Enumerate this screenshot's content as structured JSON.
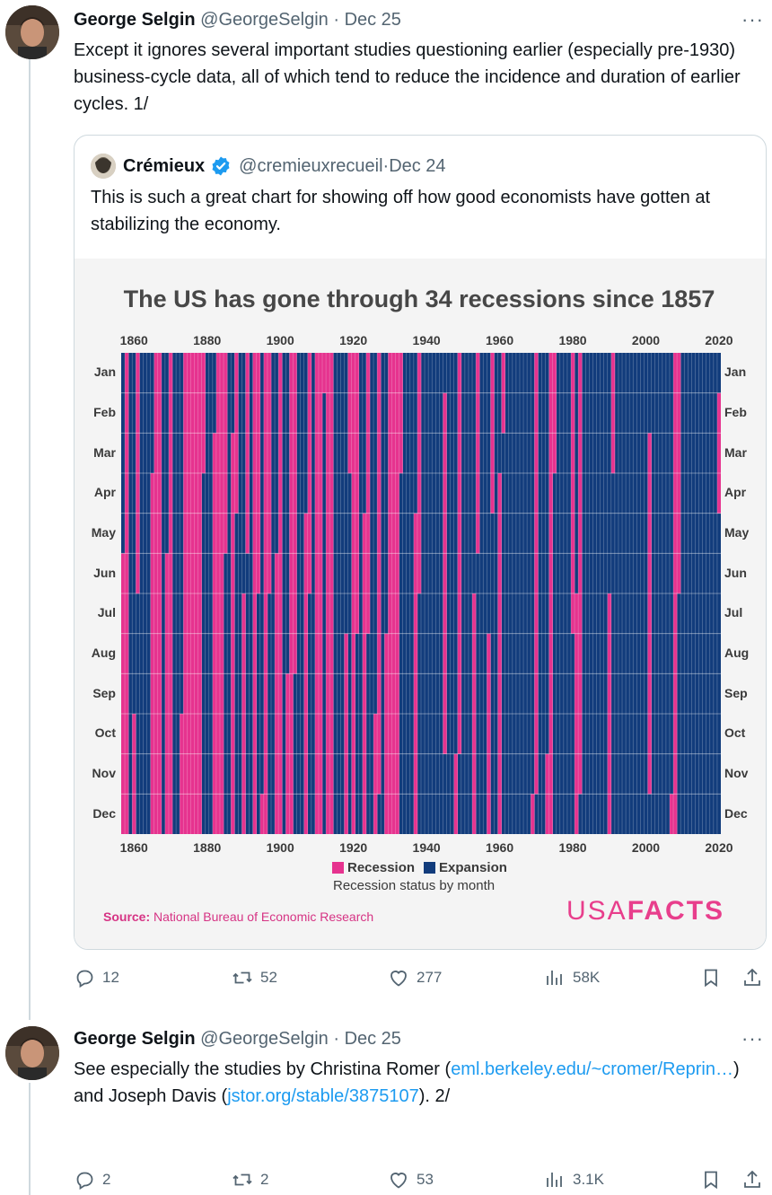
{
  "tweets": [
    {
      "author": "George Selgin",
      "handle": "@GeorgeSelgin",
      "separator": "·",
      "date": "Dec 25",
      "text": "Except it ignores several important studies questioning earlier (especially pre-1930) business-cycle data, all of which tend to reduce the incidence and duration of earlier cycles. 1/",
      "quote": {
        "author": "Crémieux",
        "handle": "@cremieuxrecueil",
        "separator": "·",
        "date": "Dec 24",
        "text": "This is such a great chart for showing off how good economists have gotten at stabilizing the economy."
      },
      "stats": {
        "replies": "12",
        "retweets": "52",
        "likes": "277",
        "views": "58K"
      }
    },
    {
      "author": "George Selgin",
      "handle": "@GeorgeSelgin",
      "separator": "·",
      "date": "Dec 25",
      "text_before": "See especially the studies by Christina Romer (",
      "link1": "eml.berkeley.edu/~cromer/Reprin…",
      "text_middle": ") and Joseph Davis (",
      "link2": "jstor.org/stable/3875107",
      "text_after": "). 2/",
      "stats": {
        "replies": "2",
        "retweets": "2",
        "likes": "53",
        "views": "3.1K"
      }
    }
  ],
  "chart_data": {
    "type": "heatmap",
    "title": "The US has gone through 34 recessions since 1857",
    "x_ticks": [
      "1860",
      "1880",
      "1900",
      "1920",
      "1940",
      "1960",
      "1980",
      "2000",
      "2020"
    ],
    "months": [
      "Jan",
      "Feb",
      "Mar",
      "Apr",
      "May",
      "Jun",
      "Jul",
      "Aug",
      "Sep",
      "Oct",
      "Nov",
      "Dec"
    ],
    "xlim": [
      1857,
      2020
    ],
    "legend": [
      {
        "label": "Recession",
        "color": "#e6338f"
      },
      {
        "label": "Expansion",
        "color": "#123c7c"
      }
    ],
    "legend_subtitle": "Recession status by month",
    "source_label": "Source:",
    "source_text": "National Bureau of Economic Research",
    "brand_light": "USA",
    "brand_bold": "FACTS",
    "recessions": [
      [
        "1857-06",
        "1858-12"
      ],
      [
        "1860-10",
        "1861-06"
      ],
      [
        "1865-04",
        "1867-12"
      ],
      [
        "1869-06",
        "1870-12"
      ],
      [
        "1873-10",
        "1879-03"
      ],
      [
        "1882-03",
        "1885-05"
      ],
      [
        "1887-03",
        "1888-04"
      ],
      [
        "1890-07",
        "1891-05"
      ],
      [
        "1893-01",
        "1894-06"
      ],
      [
        "1895-12",
        "1897-06"
      ],
      [
        "1899-06",
        "1900-12"
      ],
      [
        "1902-09",
        "1904-08"
      ],
      [
        "1907-05",
        "1908-06"
      ],
      [
        "1910-01",
        "1912-01"
      ],
      [
        "1913-01",
        "1914-12"
      ],
      [
        "1918-08",
        "1919-03"
      ],
      [
        "1920-01",
        "1921-07"
      ],
      [
        "1923-05",
        "1924-07"
      ],
      [
        "1926-10",
        "1927-11"
      ],
      [
        "1929-08",
        "1933-03"
      ],
      [
        "1937-05",
        "1938-06"
      ],
      [
        "1945-02",
        "1945-10"
      ],
      [
        "1948-11",
        "1949-10"
      ],
      [
        "1953-07",
        "1954-05"
      ],
      [
        "1957-08",
        "1958-04"
      ],
      [
        "1960-04",
        "1961-02"
      ],
      [
        "1969-12",
        "1970-11"
      ],
      [
        "1973-11",
        "1975-03"
      ],
      [
        "1980-01",
        "1980-07"
      ],
      [
        "1981-07",
        "1982-11"
      ],
      [
        "1990-07",
        "1991-03"
      ],
      [
        "2001-03",
        "2001-11"
      ],
      [
        "2007-12",
        "2009-06"
      ],
      [
        "2020-02",
        "2020-04"
      ]
    ]
  }
}
